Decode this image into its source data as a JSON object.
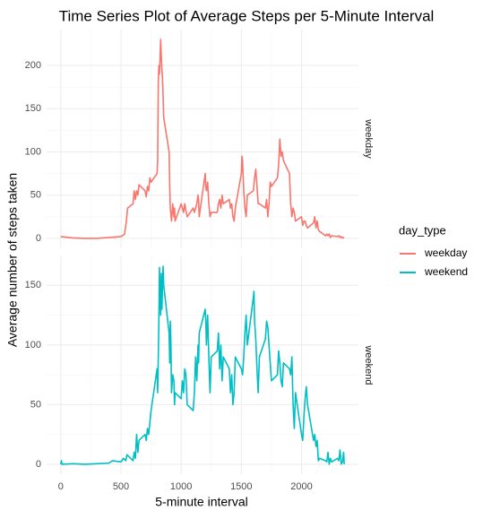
{
  "chart_data": {
    "type": "line",
    "title": "Time Series Plot of Average Steps per 5-Minute Interval",
    "x_label": "5-minute interval",
    "y_label": "Average number of steps taken",
    "legend_title": "day_type",
    "legend_position": "right",
    "grid": true,
    "xlim": [
      -118,
      2473
    ],
    "xticks": [
      0,
      500,
      1000,
      1500,
      2000
    ],
    "series": [
      {
        "name": "weekday",
        "color": "#F8766D",
        "ylim": [
          -11.5,
          241.5
        ],
        "yticks": [
          0,
          50,
          100,
          150,
          200
        ],
        "x": [
          0,
          100,
          200,
          300,
          400,
          500,
          530,
          545,
          555,
          600,
          610,
          620,
          630,
          640,
          650,
          700,
          710,
          720,
          730,
          740,
          750,
          800,
          805,
          810,
          815,
          820,
          830,
          835,
          840,
          845,
          850,
          855,
          900,
          905,
          910,
          920,
          930,
          940,
          945,
          950,
          1000,
          1010,
          1020,
          1030,
          1040,
          1050,
          1100,
          1110,
          1130,
          1140,
          1145,
          1150,
          1200,
          1205,
          1210,
          1220,
          1230,
          1240,
          1250,
          1300,
          1310,
          1320,
          1330,
          1340,
          1350,
          1400,
          1410,
          1420,
          1430,
          1440,
          1450,
          1500,
          1505,
          1510,
          1520,
          1530,
          1540,
          1550,
          1600,
          1610,
          1620,
          1630,
          1640,
          1650,
          1700,
          1710,
          1720,
          1730,
          1740,
          1750,
          1800,
          1810,
          1820,
          1830,
          1840,
          1850,
          1900,
          1910,
          1920,
          1930,
          1940,
          1950,
          2000,
          2010,
          2020,
          2030,
          2040,
          2050,
          2100,
          2110,
          2120,
          2130,
          2140,
          2150,
          2200,
          2210,
          2220,
          2230,
          2240,
          2250,
          2300,
          2310,
          2320,
          2330,
          2340,
          2355
        ],
        "values": [
          2,
          0.5,
          0,
          0,
          1,
          2,
          5,
          20,
          35,
          40,
          55,
          45,
          55,
          50,
          62,
          55,
          48,
          60,
          55,
          70,
          65,
          75,
          90,
          180,
          200,
          190,
          230,
          210,
          195,
          185,
          165,
          140,
          100,
          60,
          35,
          20,
          40,
          25,
          35,
          20,
          40,
          35,
          30,
          40,
          32,
          25,
          35,
          30,
          40,
          50,
          45,
          25,
          75,
          60,
          55,
          65,
          40,
          25,
          30,
          30,
          40,
          45,
          35,
          50,
          40,
          45,
          35,
          40,
          25,
          20,
          35,
          75,
          95,
          90,
          55,
          35,
          25,
          50,
          55,
          70,
          80,
          60,
          40,
          40,
          35,
          45,
          25,
          40,
          65,
          60,
          70,
          85,
          115,
          95,
          100,
          90,
          75,
          40,
          25,
          35,
          30,
          20,
          25,
          15,
          20,
          20,
          15,
          12,
          18,
          25,
          12,
          20,
          10,
          8,
          3,
          5,
          3,
          5,
          1,
          3,
          2,
          3,
          1,
          2,
          0.5,
          1
        ]
      },
      {
        "name": "weekend",
        "color": "#00BFC4",
        "ylim": [
          -8.3,
          174.3
        ],
        "yticks": [
          0,
          50,
          100,
          150
        ],
        "x": [
          0,
          5,
          10,
          100,
          200,
          300,
          400,
          430,
          500,
          520,
          540,
          550,
          600,
          610,
          620,
          630,
          640,
          650,
          700,
          710,
          720,
          730,
          740,
          750,
          800,
          805,
          810,
          815,
          820,
          825,
          830,
          835,
          840,
          845,
          850,
          855,
          900,
          905,
          910,
          915,
          920,
          930,
          940,
          945,
          950,
          1000,
          1010,
          1020,
          1030,
          1040,
          1050,
          1100,
          1110,
          1120,
          1130,
          1140,
          1145,
          1150,
          1200,
          1205,
          1210,
          1220,
          1230,
          1240,
          1250,
          1300,
          1310,
          1320,
          1330,
          1340,
          1350,
          1400,
          1410,
          1420,
          1430,
          1440,
          1450,
          1500,
          1510,
          1520,
          1530,
          1540,
          1550,
          1600,
          1605,
          1610,
          1620,
          1630,
          1640,
          1650,
          1700,
          1710,
          1720,
          1730,
          1740,
          1750,
          1800,
          1810,
          1820,
          1830,
          1840,
          1850,
          1900,
          1910,
          1920,
          1930,
          1940,
          1950,
          2000,
          2010,
          2020,
          2030,
          2040,
          2050,
          2100,
          2110,
          2120,
          2130,
          2140,
          2150,
          2200,
          2210,
          2220,
          2230,
          2240,
          2250,
          2300,
          2310,
          2320,
          2330,
          2340,
          2350,
          2355
        ],
        "values": [
          0,
          3,
          0,
          0.5,
          0,
          0.5,
          1,
          3,
          2,
          5,
          3,
          8,
          3,
          10,
          5,
          25,
          10,
          20,
          25,
          20,
          30,
          25,
          35,
          45,
          80,
          60,
          90,
          120,
          165,
          140,
          125,
          160,
          130,
          150,
          166,
          150,
          110,
          85,
          120,
          100,
          60,
          75,
          70,
          50,
          60,
          55,
          70,
          60,
          80,
          75,
          50,
          45,
          60,
          90,
          70,
          100,
          85,
          110,
          130,
          120,
          100,
          125,
          90,
          60,
          90,
          95,
          110,
          80,
          100,
          70,
          90,
          80,
          60,
          75,
          50,
          60,
          90,
          80,
          75,
          90,
          110,
          125,
          100,
          140,
          145,
          120,
          105,
          80,
          60,
          90,
          105,
          120,
          115,
          100,
          85,
          70,
          75,
          95,
          85,
          70,
          65,
          85,
          80,
          75,
          90,
          50,
          30,
          60,
          25,
          20,
          40,
          55,
          65,
          50,
          20,
          25,
          15,
          20,
          3,
          5,
          3,
          2,
          10,
          0,
          5,
          2,
          5,
          3,
          12,
          0,
          2,
          10,
          0
        ]
      }
    ]
  }
}
